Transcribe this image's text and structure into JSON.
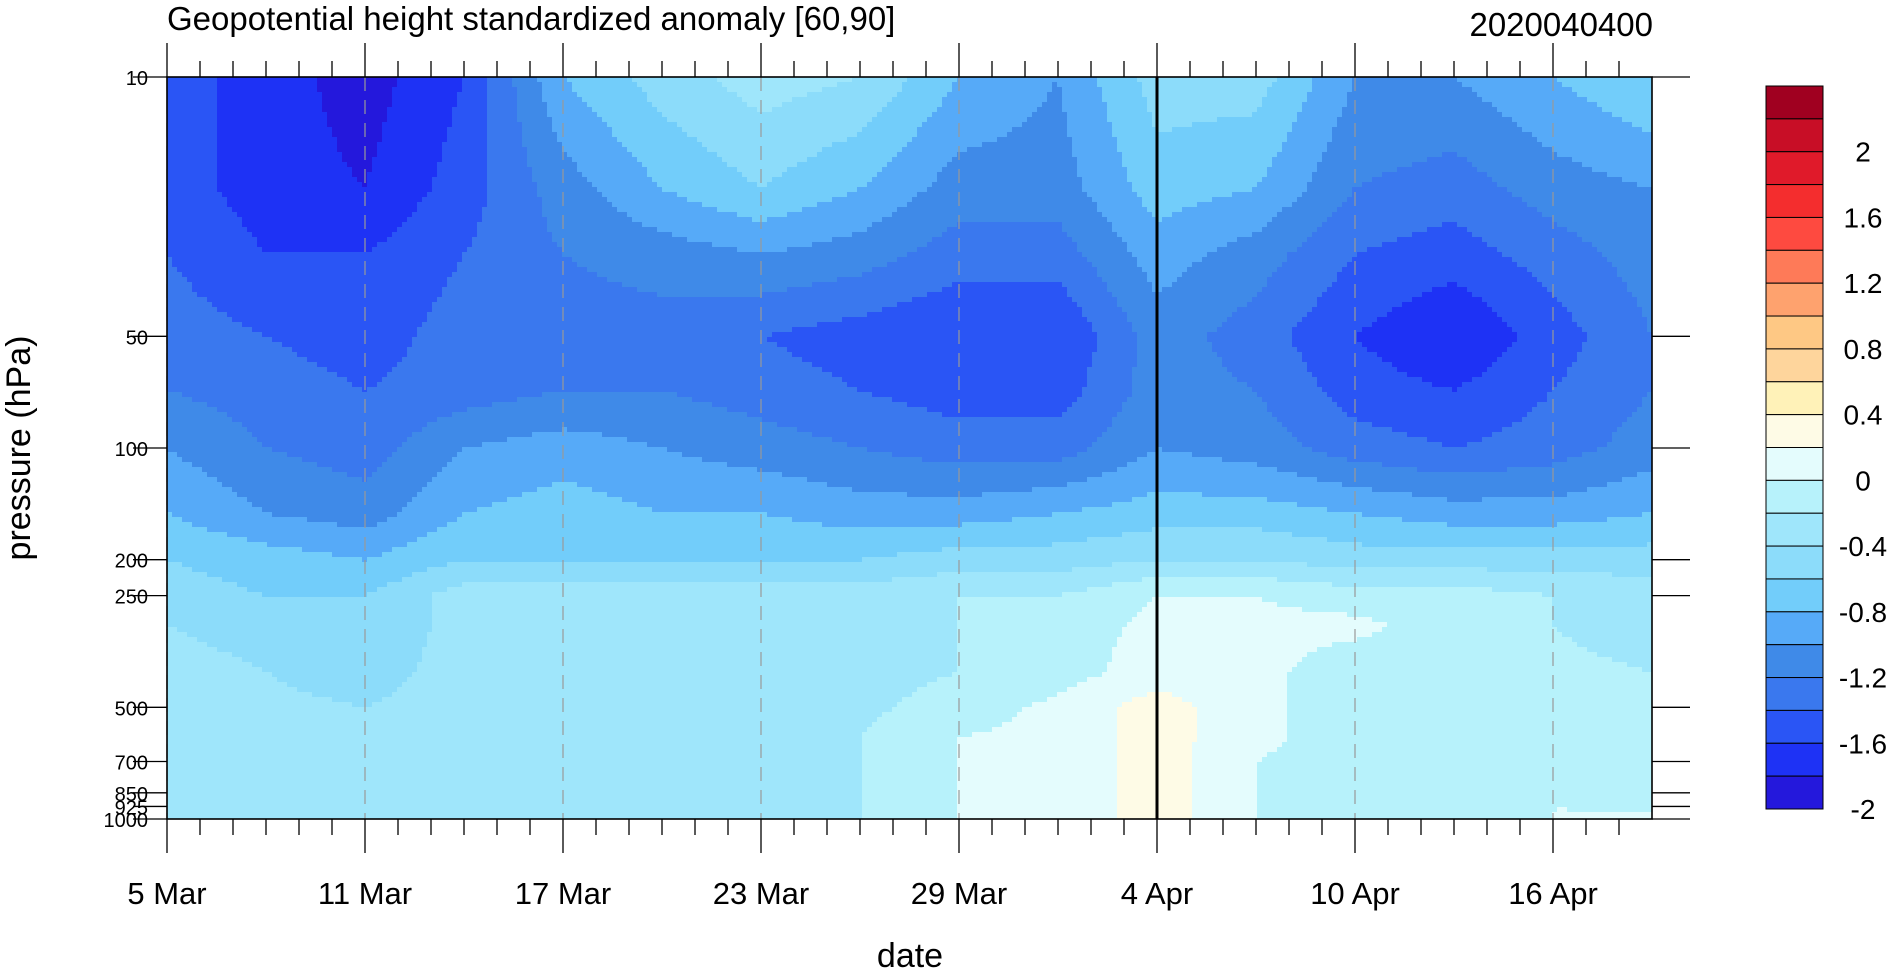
{
  "chart_data": {
    "type": "heatmap",
    "title": "Geopotential height standardized anomaly [60,90]",
    "right_title": "2020040400",
    "xlabel": "date",
    "ylabel": "pressure (hPa)",
    "x_ticks": [
      {
        "label": "5 Mar",
        "day": 0
      },
      {
        "label": "11 Mar",
        "day": 6
      },
      {
        "label": "17 Mar",
        "day": 12
      },
      {
        "label": "23 Mar",
        "day": 18
      },
      {
        "label": "29 Mar",
        "day": 24
      },
      {
        "label": "4 Apr",
        "day": 30
      },
      {
        "label": "10 Apr",
        "day": 36
      },
      {
        "label": "16 Apr",
        "day": 42
      }
    ],
    "x_range_days": [
      0,
      45
    ],
    "y_ticks": [
      {
        "label": "10",
        "p": 10
      },
      {
        "label": "50",
        "p": 50
      },
      {
        "label": "100",
        "p": 100
      },
      {
        "label": "200",
        "p": 200
      },
      {
        "label": "250",
        "p": 250
      },
      {
        "label": "500",
        "p": 500
      },
      {
        "label": "700",
        "p": 700
      },
      {
        "label": "850",
        "p": 850
      },
      {
        "label": "925",
        "p": 925
      },
      {
        "label": "1000",
        "p": 1000
      }
    ],
    "pressure_levels": [
      10,
      20,
      30,
      50,
      70,
      100,
      150,
      200,
      250,
      300,
      400,
      500,
      600,
      700,
      850,
      925,
      1000
    ],
    "contour_levels": [
      -2.2,
      -2,
      -1.8,
      -1.6,
      -1.4,
      -1.2,
      -1,
      -0.8,
      -0.6,
      -0.4,
      -0.2,
      0,
      0.2,
      0.4,
      0.6,
      0.8,
      1,
      1.2,
      1.4,
      1.6,
      1.8,
      2,
      2.2
    ],
    "fill_colors": [
      "#2418dc",
      "#1e32f5",
      "#2a55f5",
      "#3a78ee",
      "#3f8ae8",
      "#56aaf8",
      "#72cdfa",
      "#8cdcfa",
      "#9fe6fb",
      "#b7f2fb",
      "#e4fcfd",
      "#fefbe6",
      "#fff2b8",
      "#fed59c",
      "#fec884",
      "#fea26e",
      "#fe7a58",
      "#fe4a40",
      "#f42d2e",
      "#e01a2a",
      "#c80e26",
      "#a00020"
    ],
    "colorbar_labels": [
      "2",
      "1.6",
      "1.2",
      "0.8",
      "0.4",
      "0",
      "-0.4",
      "-0.8",
      "-1.2",
      "-1.6",
      "-2"
    ],
    "current_date_day": 30,
    "data_days": [
      0,
      3,
      6,
      9,
      12,
      15,
      18,
      21,
      24,
      27,
      30,
      33,
      36,
      39,
      42,
      45
    ],
    "values": [
      [
        -1.7,
        -1.9,
        -2.1,
        -1.8,
        -1.0,
        -0.7,
        -0.5,
        -0.6,
        -1.0,
        -1.2,
        -0.7,
        -0.7,
        -1.2,
        -1.2,
        -1.0,
        -0.8
      ],
      [
        -1.7,
        -1.9,
        -2.0,
        -1.7,
        -1.3,
        -1.0,
        -0.8,
        -1.0,
        -1.3,
        -1.3,
        -0.9,
        -1.0,
        -1.4,
        -1.5,
        -1.3,
        -1.2
      ],
      [
        -1.6,
        -1.8,
        -1.8,
        -1.6,
        -1.4,
        -1.3,
        -1.2,
        -1.3,
        -1.5,
        -1.5,
        -1.1,
        -1.3,
        -1.6,
        -1.7,
        -1.5,
        -1.3
      ],
      [
        -1.5,
        -1.6,
        -1.7,
        -1.5,
        -1.5,
        -1.5,
        -1.6,
        -1.7,
        -1.8,
        -1.8,
        -1.3,
        -1.5,
        -1.8,
        -2.0,
        -1.7,
        -1.4
      ],
      [
        -1.4,
        -1.5,
        -1.6,
        -1.5,
        -1.4,
        -1.4,
        -1.5,
        -1.6,
        -1.7,
        -1.7,
        -1.3,
        -1.4,
        -1.7,
        -1.8,
        -1.6,
        -1.4
      ],
      [
        -1.2,
        -1.4,
        -1.5,
        -1.2,
        -1.1,
        -1.2,
        -1.3,
        -1.4,
        -1.5,
        -1.5,
        -1.2,
        -1.3,
        -1.5,
        -1.6,
        -1.5,
        -1.3
      ],
      [
        -1.0,
        -1.2,
        -1.3,
        -1.0,
        -0.9,
        -1.0,
        -1.0,
        -1.1,
        -1.1,
        -1.0,
        -0.9,
        -0.9,
        -1.0,
        -1.1,
        -1.1,
        -1.0
      ],
      [
        -0.8,
        -0.9,
        -1.0,
        -0.8,
        -0.8,
        -0.8,
        -0.8,
        -0.8,
        -0.7,
        -0.7,
        -0.6,
        -0.6,
        -0.7,
        -0.7,
        -0.7,
        -0.7
      ],
      [
        -0.7,
        -0.8,
        -0.8,
        -0.5,
        -0.5,
        -0.5,
        -0.5,
        -0.5,
        -0.4,
        -0.4,
        -0.2,
        -0.2,
        -0.3,
        -0.3,
        -0.4,
        -0.5
      ],
      [
        -0.6,
        -0.7,
        -0.8,
        -0.5,
        -0.5,
        -0.5,
        -0.5,
        -0.5,
        -0.4,
        -0.3,
        -0.15,
        -0.15,
        -0.15,
        -0.3,
        -0.4,
        -0.5
      ],
      [
        -0.5,
        -0.6,
        -0.7,
        -0.5,
        -0.5,
        -0.5,
        -0.5,
        -0.5,
        -0.4,
        -0.3,
        -0.1,
        -0.15,
        -0.3,
        -0.3,
        -0.35,
        -0.4
      ],
      [
        -0.45,
        -0.55,
        -0.6,
        -0.5,
        -0.5,
        -0.5,
        -0.5,
        -0.45,
        -0.3,
        -0.15,
        0.1,
        -0.15,
        -0.3,
        -0.35,
        -0.35,
        -0.35
      ],
      [
        -0.45,
        -0.5,
        -0.5,
        -0.5,
        -0.5,
        -0.5,
        -0.45,
        -0.4,
        -0.2,
        -0.15,
        0.1,
        -0.15,
        -0.3,
        -0.35,
        -0.3,
        -0.3
      ],
      [
        -0.4,
        -0.5,
        -0.5,
        -0.5,
        -0.45,
        -0.45,
        -0.45,
        -0.4,
        -0.2,
        -0.15,
        0.1,
        -0.2,
        -0.3,
        -0.3,
        -0.25,
        -0.25
      ],
      [
        -0.4,
        -0.5,
        -0.5,
        -0.5,
        -0.45,
        -0.45,
        -0.45,
        -0.4,
        -0.2,
        -0.15,
        0.1,
        -0.2,
        -0.3,
        -0.3,
        -0.25,
        -0.2
      ],
      [
        -0.4,
        -0.5,
        -0.5,
        -0.5,
        -0.45,
        -0.45,
        -0.45,
        -0.4,
        -0.2,
        -0.15,
        0.1,
        -0.2,
        -0.3,
        -0.3,
        -0.2,
        -0.2
      ],
      [
        -0.4,
        -0.5,
        -0.5,
        -0.5,
        -0.45,
        -0.45,
        -0.45,
        -0.4,
        -0.2,
        -0.15,
        0.1,
        -0.2,
        -0.3,
        -0.3,
        -0.2,
        -0.2
      ]
    ],
    "colors": {
      "axis": "#000000",
      "grid_dash": "#999999",
      "contour_line": "#000000"
    }
  }
}
